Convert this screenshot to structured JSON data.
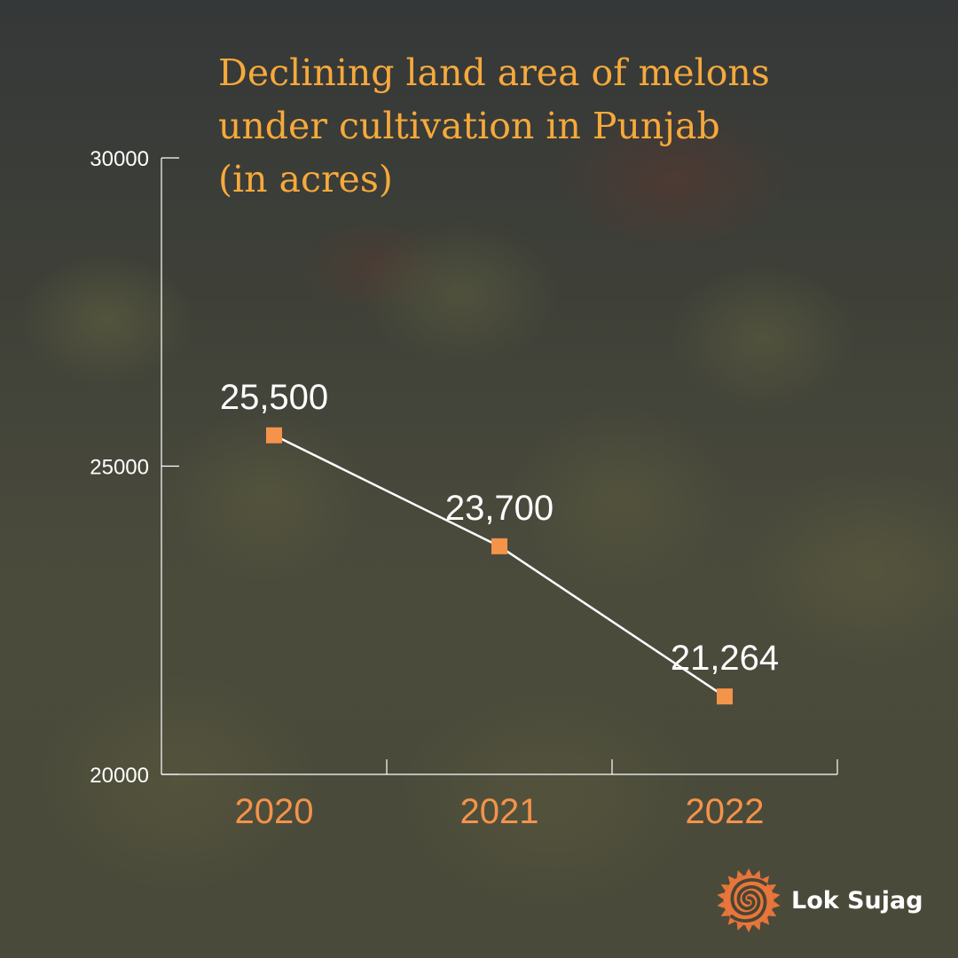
{
  "title_lines": [
    "Declining land area of melons",
    "under cultivation in Punjab",
    "(in acres)"
  ],
  "brand": {
    "name": "Lok Sujag",
    "logo_icon": "spiral-sun-logo-icon"
  },
  "colors": {
    "title": "#f6a93b",
    "marker": "#f4934a",
    "category_label": "#f4934a",
    "line": "#ffffff",
    "axis": "#ffffff"
  },
  "chart_data": {
    "type": "line",
    "categories": [
      "2020",
      "2021",
      "2022"
    ],
    "values": [
      25500,
      23700,
      21264
    ],
    "data_labels": [
      "25,500",
      "23,700",
      "21,264"
    ],
    "ylim": [
      20000,
      30000
    ],
    "yticks": [
      20000,
      25000,
      30000
    ],
    "ytick_labels": [
      "20000",
      "25000",
      "30000"
    ],
    "grid": false,
    "legend": "none",
    "marker": "square"
  }
}
